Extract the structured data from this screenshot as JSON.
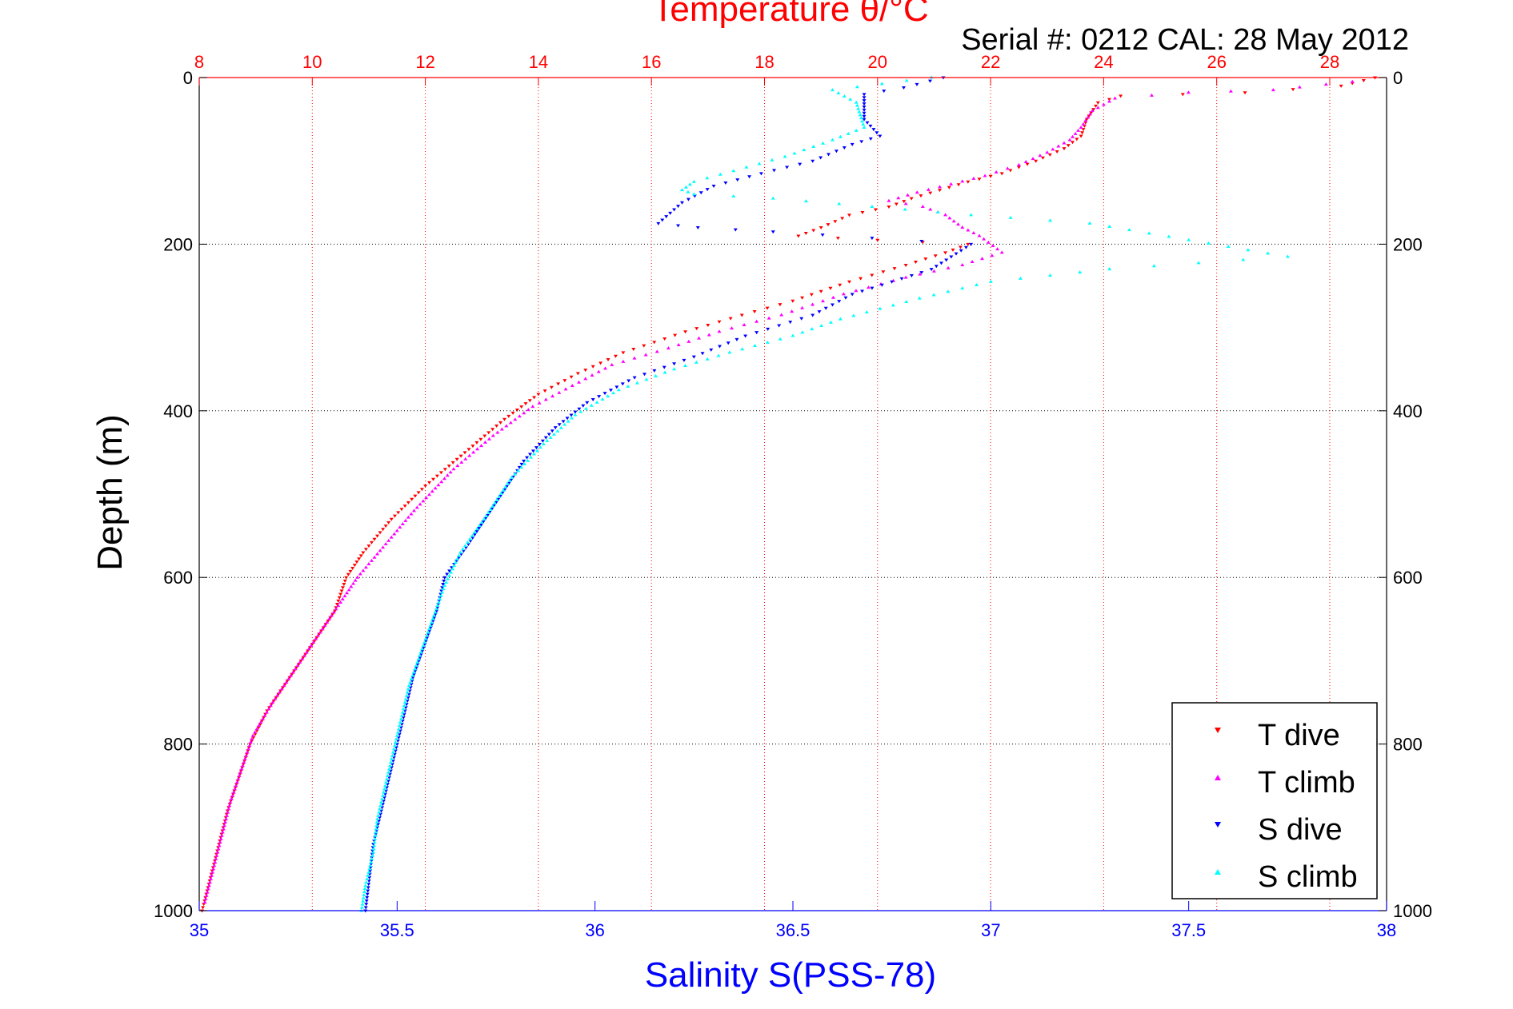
{
  "chart_data": {
    "type": "scatter",
    "title": "Temperature θ/°C",
    "subtitle": "Serial #: 0212  CAL: 28 May 2012",
    "xlabel": "Salinity S(PSS-78)",
    "ylabel": "Depth (m)",
    "x_bottom": {
      "label": "Salinity S(PSS-78)",
      "range": [
        35,
        38
      ],
      "ticks": [
        35,
        35.5,
        36,
        36.5,
        37,
        37.5,
        38
      ],
      "tick_labels": [
        "35",
        "35.5",
        "36",
        "36.5",
        "37",
        "37.5",
        "38"
      ],
      "color": "#0000ff"
    },
    "x_top": {
      "label": "Temperature θ/°C",
      "range": [
        8,
        29
      ],
      "ticks": [
        8,
        10,
        12,
        14,
        16,
        18,
        20,
        22,
        24,
        26,
        28
      ],
      "tick_labels": [
        "8",
        "10",
        "12",
        "14",
        "16",
        "18",
        "20",
        "22",
        "24",
        "26",
        "28"
      ],
      "color": "#ff0000"
    },
    "y": {
      "label": "Depth (m)",
      "range": [
        0,
        1000
      ],
      "reversed": true,
      "ticks": [
        0,
        200,
        400,
        600,
        800,
        1000
      ],
      "tick_labels": [
        "0",
        "200",
        "400",
        "600",
        "800",
        "1000"
      ]
    },
    "grid": true,
    "legend_position": "bottom-right",
    "series": [
      {
        "name": "T dive",
        "axis": "temperature",
        "marker": "triangle-down",
        "color": "#ff0000",
        "points": [
          [
            28.8,
            0
          ],
          [
            28.2,
            10
          ],
          [
            26.5,
            18
          ],
          [
            24.3,
            22
          ],
          [
            23.9,
            30
          ],
          [
            23.7,
            50
          ],
          [
            23.6,
            70
          ],
          [
            23.3,
            85
          ],
          [
            22.8,
            100
          ],
          [
            22.2,
            115
          ],
          [
            21.6,
            125
          ],
          [
            21.1,
            135
          ],
          [
            20.6,
            145
          ],
          [
            20.2,
            155
          ],
          [
            19.5,
            165
          ],
          [
            19.0,
            180
          ],
          [
            18.6,
            190
          ],
          [
            20.0,
            195
          ],
          [
            21.6,
            200
          ],
          [
            21.2,
            210
          ],
          [
            20.5,
            225
          ],
          [
            19.5,
            245
          ],
          [
            18.5,
            268
          ],
          [
            17.6,
            285
          ],
          [
            16.6,
            305
          ],
          [
            15.5,
            330
          ],
          [
            14.7,
            355
          ],
          [
            14.0,
            380
          ],
          [
            13.4,
            410
          ],
          [
            12.7,
            450
          ],
          [
            12.0,
            490
          ],
          [
            11.4,
            530
          ],
          [
            10.9,
            570
          ],
          [
            10.6,
            600
          ],
          [
            10.4,
            640
          ],
          [
            10.0,
            680
          ],
          [
            9.6,
            720
          ],
          [
            9.2,
            760
          ],
          [
            8.9,
            800
          ],
          [
            8.7,
            840
          ],
          [
            8.5,
            880
          ],
          [
            8.35,
            920
          ],
          [
            8.2,
            960
          ],
          [
            8.05,
            1000
          ]
        ]
      },
      {
        "name": "T climb",
        "axis": "temperature",
        "marker": "triangle-up",
        "color": "#ff00ff",
        "points": [
          [
            28.4,
            5
          ],
          [
            27.0,
            15
          ],
          [
            25.5,
            18
          ],
          [
            24.2,
            25
          ],
          [
            23.8,
            40
          ],
          [
            23.6,
            60
          ],
          [
            23.4,
            75
          ],
          [
            23.0,
            90
          ],
          [
            22.5,
            105
          ],
          [
            21.9,
            118
          ],
          [
            21.3,
            128
          ],
          [
            20.7,
            138
          ],
          [
            20.2,
            148
          ],
          [
            20.8,
            155
          ],
          [
            21.2,
            165
          ],
          [
            21.5,
            180
          ],
          [
            21.8,
            190
          ],
          [
            22.2,
            210
          ],
          [
            21.5,
            225
          ],
          [
            20.5,
            240
          ],
          [
            19.4,
            260
          ],
          [
            18.3,
            285
          ],
          [
            17.2,
            305
          ],
          [
            16.3,
            325
          ],
          [
            15.3,
            345
          ],
          [
            14.6,
            370
          ],
          [
            13.9,
            395
          ],
          [
            13.2,
            430
          ],
          [
            12.5,
            470
          ],
          [
            11.8,
            520
          ],
          [
            11.3,
            560
          ],
          [
            10.8,
            600
          ],
          [
            10.5,
            630
          ],
          [
            10.1,
            670
          ],
          [
            9.7,
            710
          ],
          [
            9.3,
            750
          ],
          [
            8.95,
            790
          ],
          [
            8.75,
            830
          ],
          [
            8.55,
            870
          ],
          [
            8.4,
            910
          ],
          [
            8.25,
            950
          ],
          [
            8.1,
            990
          ]
        ]
      },
      {
        "name": "S dive",
        "axis": "salinity",
        "marker": "triangle-down",
        "color": "#0000ff",
        "points": [
          [
            36.88,
            0
          ],
          [
            36.78,
            12
          ],
          [
            36.68,
            20
          ],
          [
            36.68,
            50
          ],
          [
            36.72,
            70
          ],
          [
            36.65,
            80
          ],
          [
            36.55,
            100
          ],
          [
            36.42,
            115
          ],
          [
            36.3,
            130
          ],
          [
            36.22,
            150
          ],
          [
            36.16,
            175
          ],
          [
            36.26,
            180
          ],
          [
            36.45,
            185
          ],
          [
            36.95,
            200
          ],
          [
            36.85,
            230
          ],
          [
            36.65,
            260
          ],
          [
            36.55,
            285
          ],
          [
            36.38,
            310
          ],
          [
            36.25,
            335
          ],
          [
            36.1,
            360
          ],
          [
            35.98,
            390
          ],
          [
            35.9,
            420
          ],
          [
            35.82,
            460
          ],
          [
            35.75,
            510
          ],
          [
            35.68,
            560
          ],
          [
            35.62,
            600
          ],
          [
            35.6,
            640
          ],
          [
            35.57,
            680
          ],
          [
            35.54,
            720
          ],
          [
            35.52,
            760
          ],
          [
            35.5,
            800
          ],
          [
            35.48,
            840
          ],
          [
            35.46,
            880
          ],
          [
            35.44,
            920
          ],
          [
            35.43,
            960
          ],
          [
            35.42,
            1000
          ]
        ]
      },
      {
        "name": "S climb",
        "axis": "salinity",
        "marker": "triangle-up",
        "color": "#00ffff",
        "points": [
          [
            36.85,
            0
          ],
          [
            36.6,
            15
          ],
          [
            36.66,
            30
          ],
          [
            36.68,
            60
          ],
          [
            36.6,
            75
          ],
          [
            36.48,
            95
          ],
          [
            36.35,
            112
          ],
          [
            36.25,
            125
          ],
          [
            36.22,
            135
          ],
          [
            36.25,
            140
          ],
          [
            36.45,
            145
          ],
          [
            36.7,
            155
          ],
          [
            36.95,
            165
          ],
          [
            37.25,
            175
          ],
          [
            37.5,
            195
          ],
          [
            37.75,
            215
          ],
          [
            37.3,
            230
          ],
          [
            37.0,
            245
          ],
          [
            36.82,
            265
          ],
          [
            36.62,
            290
          ],
          [
            36.5,
            310
          ],
          [
            36.34,
            330
          ],
          [
            36.2,
            350
          ],
          [
            36.06,
            375
          ],
          [
            35.95,
            405
          ],
          [
            35.87,
            440
          ],
          [
            35.79,
            480
          ],
          [
            35.72,
            530
          ],
          [
            35.66,
            570
          ],
          [
            35.62,
            610
          ],
          [
            35.59,
            650
          ],
          [
            35.56,
            690
          ],
          [
            35.53,
            730
          ],
          [
            35.51,
            770
          ],
          [
            35.49,
            810
          ],
          [
            35.47,
            850
          ],
          [
            35.45,
            890
          ],
          [
            35.44,
            930
          ],
          [
            35.42,
            970
          ],
          [
            35.41,
            1000
          ]
        ]
      }
    ]
  },
  "legend": {
    "entries": [
      "T dive",
      "T climb",
      "S dive",
      "S climb"
    ]
  }
}
